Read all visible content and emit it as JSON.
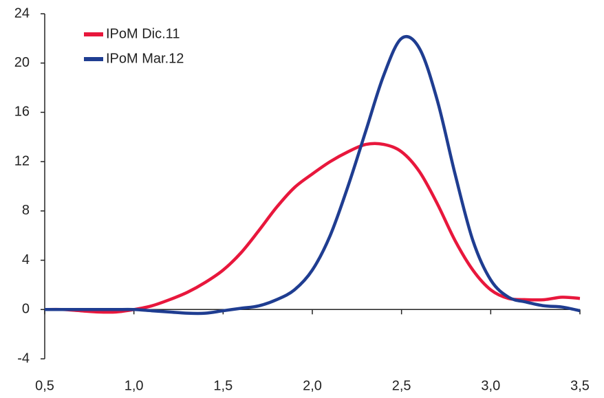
{
  "chart_data": {
    "type": "line",
    "x": [
      0.5,
      0.6,
      0.7,
      0.8,
      0.9,
      1.0,
      1.1,
      1.2,
      1.3,
      1.4,
      1.5,
      1.6,
      1.7,
      1.8,
      1.9,
      2.0,
      2.1,
      2.2,
      2.3,
      2.4,
      2.5,
      2.6,
      2.7,
      2.8,
      2.9,
      3.0,
      3.1,
      3.2,
      3.3,
      3.4,
      3.5
    ],
    "series": [
      {
        "name": "IPoM Dic.11",
        "color": "#e8173c",
        "values": [
          0,
          0,
          -0.1,
          -0.2,
          -0.2,
          0,
          0.3,
          0.8,
          1.4,
          2.2,
          3.2,
          4.6,
          6.4,
          8.3,
          9.9,
          11.0,
          12.0,
          12.8,
          13.4,
          13.4,
          12.8,
          11.2,
          8.6,
          5.6,
          3.2,
          1.6,
          0.9,
          0.8,
          0.8,
          1.0,
          0.9
        ]
      },
      {
        "name": "IPoM Mar.12",
        "color": "#1f3d91",
        "values": [
          0,
          0,
          0,
          0,
          0,
          0,
          -0.1,
          -0.2,
          -0.3,
          -0.3,
          -0.1,
          0.1,
          0.3,
          0.8,
          1.6,
          3.2,
          6.0,
          10.0,
          14.5,
          19.0,
          22.0,
          21.2,
          17.0,
          11.0,
          5.6,
          2.4,
          1.0,
          0.6,
          0.3,
          0.2,
          -0.1
        ]
      }
    ],
    "xlim": [
      0.5,
      3.5
    ],
    "xticks": [
      {
        "value": 0.5,
        "label": "0,5"
      },
      {
        "value": 1.0,
        "label": "1,0"
      },
      {
        "value": 1.5,
        "label": "1,5"
      },
      {
        "value": 2.0,
        "label": "2,0"
      },
      {
        "value": 2.5,
        "label": "2,5"
      },
      {
        "value": 3.0,
        "label": "3,0"
      },
      {
        "value": 3.5,
        "label": "3,5"
      }
    ],
    "ylim": [
      -4,
      24
    ],
    "yticks": [
      -4,
      0,
      4,
      8,
      12,
      16,
      20,
      24
    ],
    "legend": "top-left"
  }
}
